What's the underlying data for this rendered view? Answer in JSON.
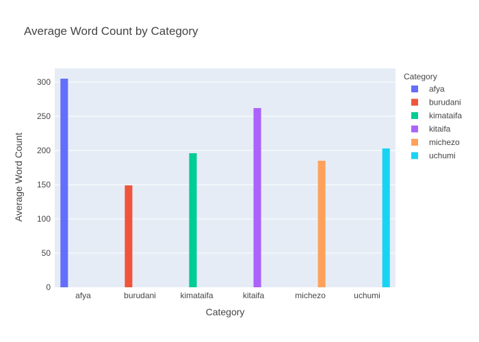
{
  "chart_data": {
    "type": "bar",
    "title": "Average Word Count by Category",
    "xlabel": "Category",
    "ylabel": "Average Word Count",
    "categories": [
      "afya",
      "burudani",
      "kimataifa",
      "kitaifa",
      "michezo",
      "uchumi"
    ],
    "ylim": [
      0,
      320
    ],
    "yticks": [
      0,
      50,
      100,
      150,
      200,
      250,
      300
    ],
    "grid": true,
    "legend": {
      "title": "Category",
      "placement": "top-right"
    },
    "series": [
      {
        "name": "afya",
        "category": "afya",
        "value": 305,
        "color": "#636efa"
      },
      {
        "name": "burudani",
        "category": "burudani",
        "value": 149,
        "color": "#ef553b"
      },
      {
        "name": "kimataifa",
        "category": "kimataifa",
        "value": 196,
        "color": "#00cc96"
      },
      {
        "name": "kitaifa",
        "category": "kitaifa",
        "value": 262,
        "color": "#ab63fa"
      },
      {
        "name": "michezo",
        "category": "michezo",
        "value": 185,
        "color": "#ffa15a"
      },
      {
        "name": "uchumi",
        "category": "uchumi",
        "value": 203,
        "color": "#19d3f3"
      }
    ],
    "plot_background": "#e5ecf6"
  }
}
